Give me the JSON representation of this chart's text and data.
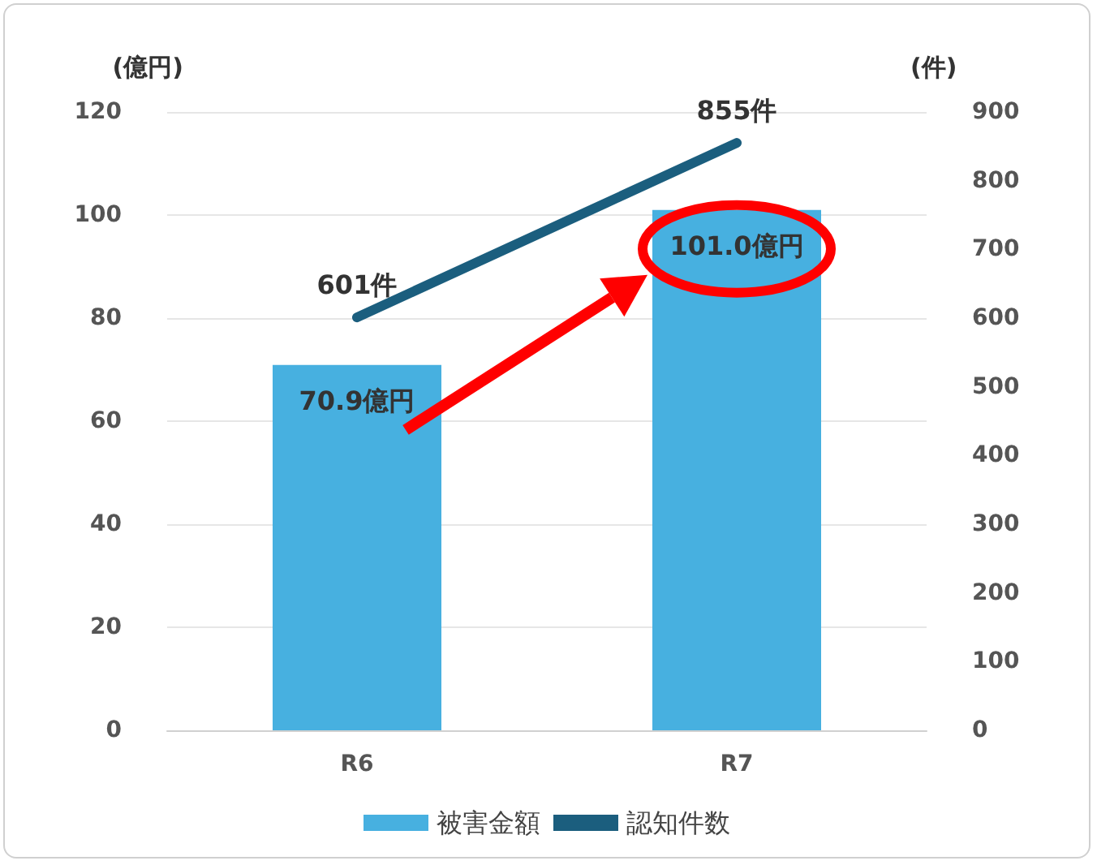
{
  "chart_data": {
    "type": "bar",
    "categories": [
      "R6",
      "R7"
    ],
    "ylabel": "(億円)",
    "y2label": "(件)",
    "series": [
      {
        "name": "被害金額",
        "color": "#47b0e0",
        "values": [
          70.9,
          101.0
        ],
        "value_labels": [
          "70.9億円",
          "101.0億円"
        ]
      },
      {
        "name": "認知件数",
        "type": "line",
        "axis": "y2",
        "color": "#1b5e7e",
        "values": [
          601,
          855
        ],
        "value_labels": [
          "601件",
          "855件"
        ]
      }
    ],
    "ylim": [
      0,
      120
    ],
    "yticks": [
      0,
      20,
      40,
      60,
      80,
      100,
      120
    ],
    "y2lim": [
      0,
      900
    ],
    "y2ticks": [
      0,
      100,
      200,
      300,
      400,
      500,
      600,
      700,
      800,
      900
    ],
    "grid": "y",
    "legend": "bottom",
    "marker": "none",
    "line_style": "solid"
  }
}
